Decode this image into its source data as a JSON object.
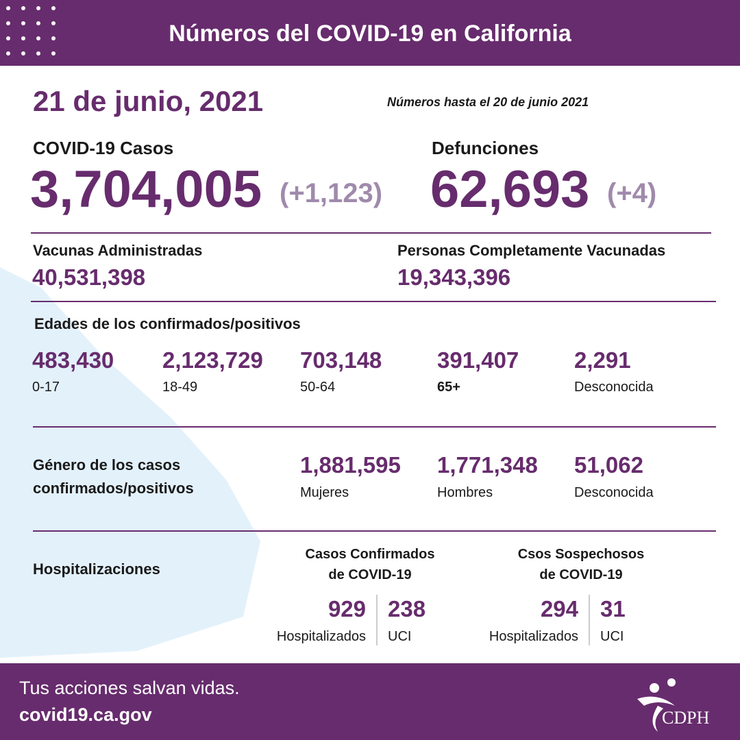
{
  "header": {
    "title": "Números del COVID-19 en California"
  },
  "date": "21 de junio, 2021",
  "as_of": "Números hasta el 20 de junio 2021",
  "cases": {
    "label": "COVID-19 Casos",
    "value": "3,704,005",
    "change": "(+1,123)"
  },
  "deaths": {
    "label": "Defunciones",
    "value": "62,693",
    "change": "(+4)"
  },
  "vaccines_administered": {
    "label": "Vacunas Administradas",
    "value": "40,531,398"
  },
  "fully_vaccinated": {
    "label": "Personas Completamente Vacunadas",
    "value": "19,343,396"
  },
  "ages": {
    "title": "Edades de los confirmados/positivos",
    "groups": [
      {
        "value": "483,430",
        "label": "0-17"
      },
      {
        "value": "2,123,729",
        "label": "18-49"
      },
      {
        "value": "703,148",
        "label": "50-64"
      },
      {
        "value": "391,407",
        "label": "65+"
      },
      {
        "value": "2,291",
        "label": "Desconocida"
      }
    ]
  },
  "gender": {
    "title_lines": [
      "Género de los casos",
      "confirmados/positivos"
    ],
    "groups": [
      {
        "value": "1,881,595",
        "label": "Mujeres"
      },
      {
        "value": "1,771,348",
        "label": "Hombres"
      },
      {
        "value": "51,062",
        "label": "Desconocida"
      }
    ]
  },
  "hospitalizations": {
    "title": "Hospitalizaciones",
    "confirmed": {
      "heading_lines": [
        "Casos Confirmados",
        "de COVID-19"
      ],
      "hospitalized": {
        "value": "929",
        "label": "Hospitalizados"
      },
      "icu": {
        "value": "238",
        "label": "UCI"
      }
    },
    "suspected": {
      "heading_lines": [
        "Csos Sospechosos",
        "de COVID-19"
      ],
      "hospitalized": {
        "value": "294",
        "label": "Hospitalizados"
      },
      "icu": {
        "value": "31",
        "label": "UCI"
      }
    }
  },
  "footer": {
    "tagline": "Tus acciones salvan vidas.",
    "url": "covid19.ca.gov",
    "logo": "CDPH"
  }
}
